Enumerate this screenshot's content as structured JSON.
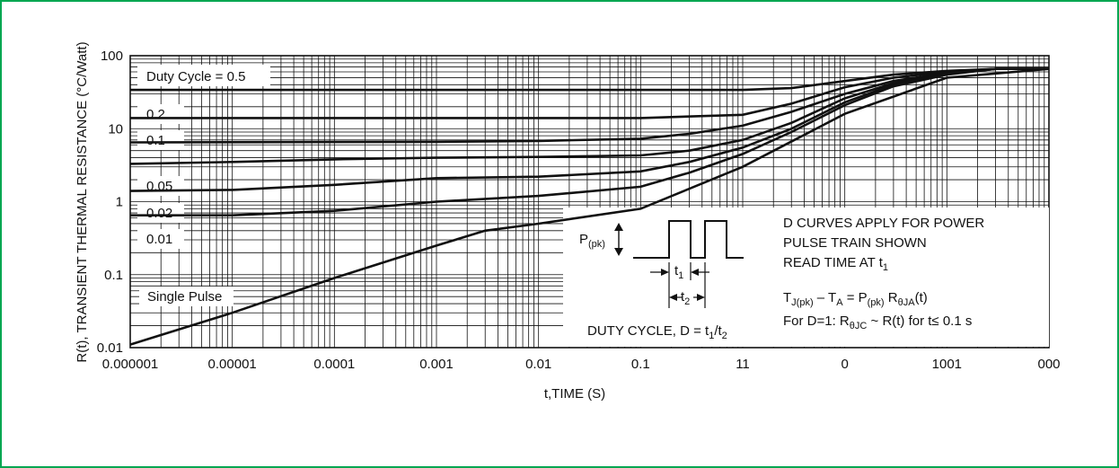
{
  "chart_data": {
    "type": "line",
    "xlabel": "t,TIME (S)",
    "ylabel": "R(t), TRANSIENT THERMAL RESISTANCE (°C/Watt)",
    "x_scale": "log",
    "y_scale": "log",
    "xlim": [
      1e-06,
      1000
    ],
    "ylim": [
      0.01,
      100
    ],
    "grid": true,
    "x_tick_labels": [
      "0.000001",
      "0.00001",
      "0.0001",
      "0.001",
      "0.01",
      "0.1",
      "11",
      "0",
      "1001",
      "000"
    ],
    "y_tick_labels": [
      "100",
      "10",
      "1",
      "0.1",
      "0.01"
    ],
    "series": [
      {
        "name": "Duty Cycle = 0.5",
        "x": [
          1e-06,
          0.001,
          0.1,
          1,
          3,
          10,
          30,
          100,
          300,
          1000
        ],
        "y": [
          34,
          34,
          34,
          34,
          36,
          45,
          55,
          62,
          66,
          66
        ]
      },
      {
        "name": "0.2",
        "x": [
          1e-06,
          0.001,
          0.1,
          1,
          3,
          10,
          30,
          100,
          300,
          1000
        ],
        "y": [
          14,
          14,
          14,
          15.5,
          22,
          37,
          50,
          60,
          66,
          66
        ]
      },
      {
        "name": "0.1",
        "x": [
          1e-06,
          0.001,
          0.01,
          0.1,
          0.3,
          1,
          3,
          10,
          30,
          100,
          300,
          1000
        ],
        "y": [
          6.5,
          6.6,
          6.8,
          7.3,
          8.5,
          11,
          17,
          30,
          45,
          58,
          66,
          66
        ]
      },
      {
        "name": "",
        "x": [
          1e-06,
          1e-05,
          0.0001,
          0.001,
          0.01,
          0.1,
          0.3,
          1,
          3,
          10,
          30,
          100,
          300,
          1000
        ],
        "y": [
          3.3,
          3.5,
          3.8,
          4.0,
          4.1,
          4.3,
          5,
          7,
          12,
          26,
          42,
          57,
          66,
          66
        ]
      },
      {
        "name": "0.05",
        "x": [
          1e-06,
          1e-05,
          0.0001,
          0.001,
          0.01,
          0.1,
          0.3,
          1,
          3,
          10,
          30,
          100,
          300,
          1000
        ],
        "y": [
          1.4,
          1.45,
          1.7,
          2.1,
          2.2,
          2.6,
          3.5,
          5.5,
          10,
          23,
          40,
          56,
          66,
          66
        ]
      },
      {
        "name": "0.02",
        "x": [
          1e-06,
          1e-05,
          0.0001,
          0.001,
          0.01,
          0.1,
          0.3,
          1,
          3,
          10,
          30,
          100,
          300,
          1000
        ],
        "y": [
          0.65,
          0.65,
          0.75,
          1.0,
          1.2,
          1.6,
          2.5,
          4.5,
          9,
          21,
          38,
          55,
          66,
          66
        ]
      },
      {
        "name": "Single Pulse",
        "x": [
          1e-06,
          1e-05,
          0.0001,
          0.001,
          0.003,
          0.01,
          0.1,
          1,
          10,
          100,
          1000
        ],
        "y": [
          0.011,
          0.03,
          0.09,
          0.25,
          0.4,
          0.5,
          0.8,
          3.0,
          16,
          50,
          66
        ]
      }
    ],
    "annotations": {
      "dc_05": "Duty Cycle = 0.5",
      "dc_02": "0.2",
      "dc_01": "0.1",
      "dc_005": "0.05",
      "dc_002": "0.02",
      "dc_001": "0.01",
      "single": "Single Pulse",
      "curves_line1": "D CURVES APPLY FOR POWER",
      "curves_line2": "PULSE TRAIN SHOWN",
      "curves_line3": "READ TIME AT t",
      "curves_line3_sub": "1",
      "formula_T": "T",
      "formula_J_sub": "J(pk)",
      "formula_dash": " – T",
      "formula_A_sub": "A",
      "formula_eq": " = P",
      "formula_pk_sub": "(pk)",
      "formula_R": " R",
      "formula_thetaJA_sub": "θJA",
      "formula_t": "(t)",
      "for_d1_a": "For D=1: R",
      "for_d1_sub": "θJC",
      "for_d1_b": " ~ R(t) for t≤ 0.1 s",
      "ppk_P": "P",
      "ppk_sub": "(pk)",
      "t1_t": "t",
      "t1_sub": "1",
      "t2_t": "t",
      "t2_sub": "2",
      "duty_a": "DUTY CYCLE, D = t",
      "duty_sub1": "1",
      "duty_slash": "/t",
      "duty_sub2": "2"
    }
  }
}
